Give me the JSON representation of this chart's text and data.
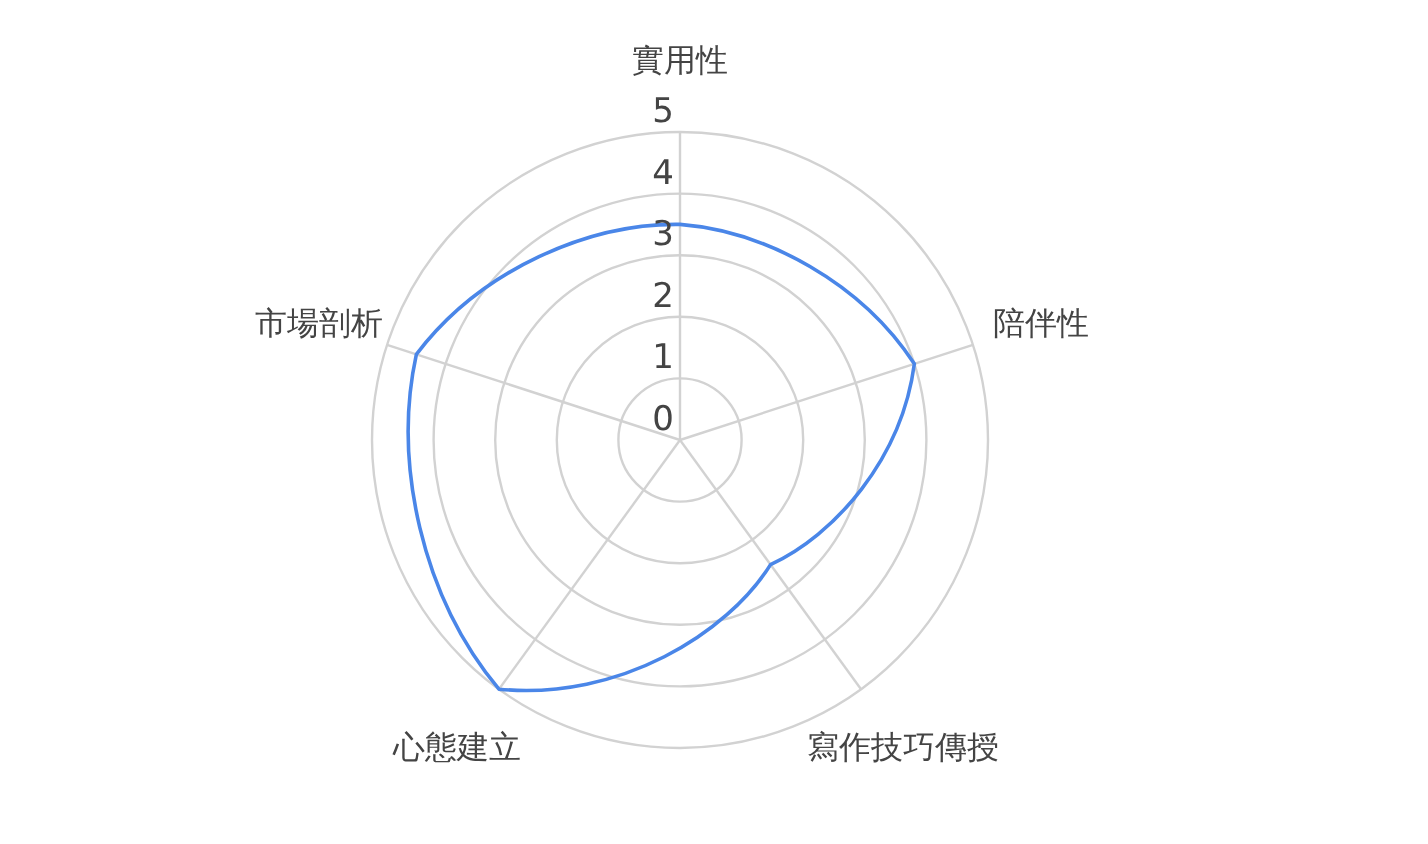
{
  "chart_data": {
    "type": "radar",
    "categories": [
      "實用性",
      "陪伴性",
      "寫作技巧傳授",
      "心態建立",
      "市場剖析"
    ],
    "series": [
      {
        "color": "#4a86e8",
        "values": [
          3.5,
          4,
          2.5,
          5,
          4.5
        ]
      }
    ],
    "ylim": [
      0,
      5
    ],
    "yticks": [
      0,
      1,
      2,
      3,
      4,
      5
    ],
    "grid": true
  }
}
